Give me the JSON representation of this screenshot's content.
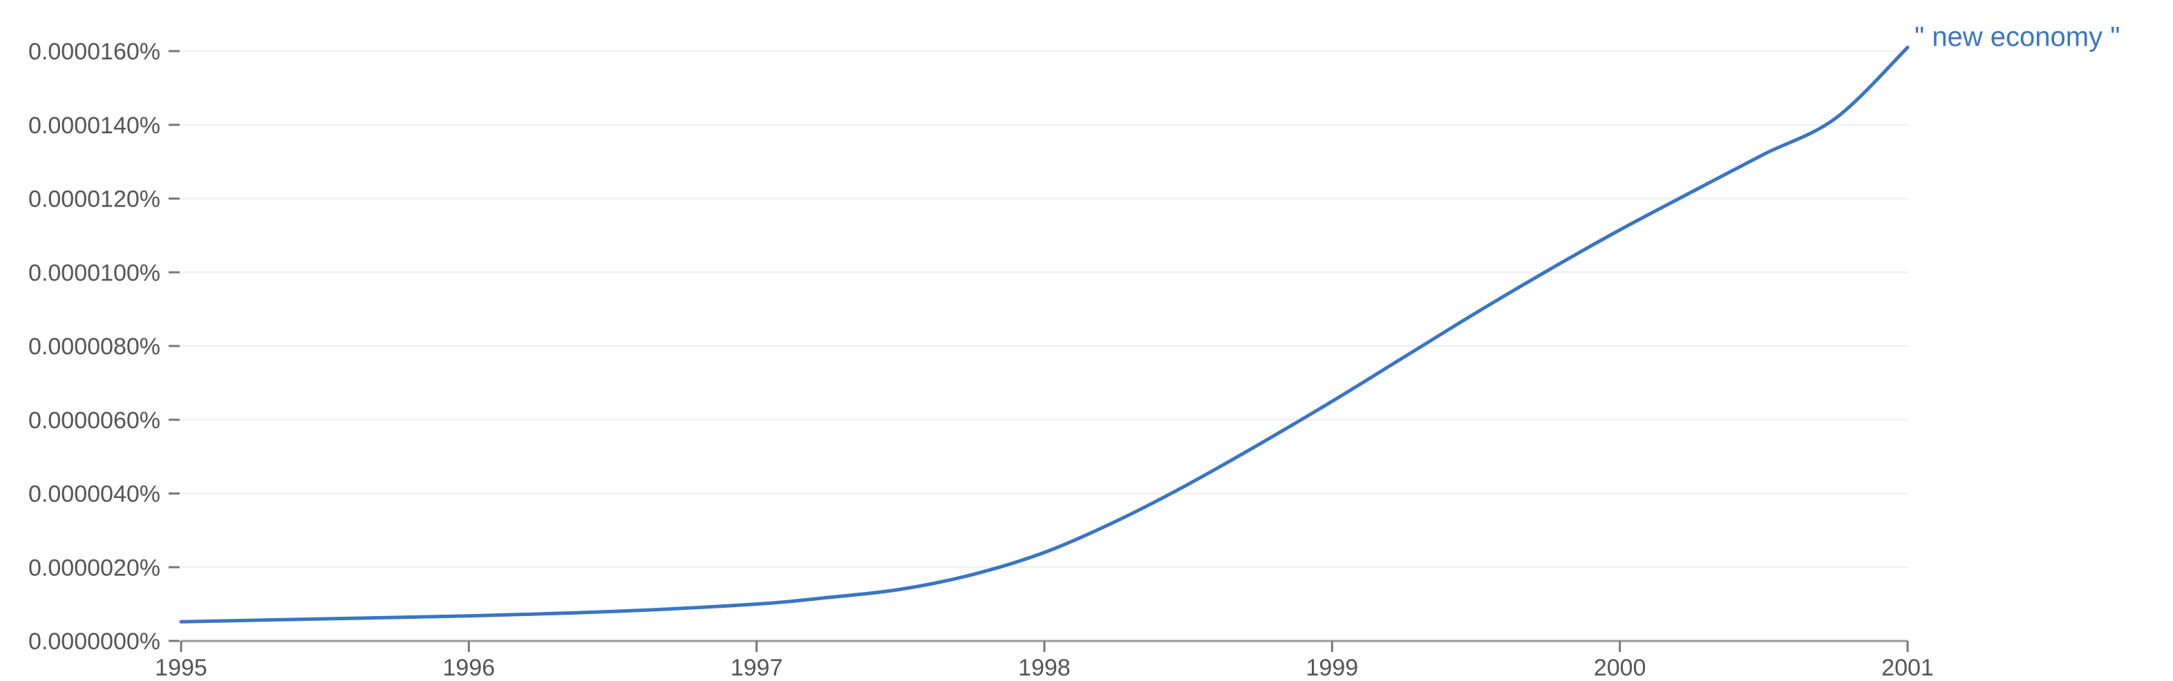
{
  "chart_data": {
    "type": "line",
    "title": "",
    "xlabel": "",
    "ylabel": "",
    "xlim": [
      1995,
      2001
    ],
    "ylim": [
      0,
      1.6e-07
    ],
    "x_ticks": [
      1995,
      1996,
      1997,
      1998,
      1999,
      2000,
      2001
    ],
    "x_tick_labels": [
      "1995",
      "1996",
      "1997",
      "1998",
      "1999",
      "2000",
      "2001"
    ],
    "y_ticks": [
      0,
      2e-08,
      4e-08,
      6e-08,
      8e-08,
      1e-07,
      1.2e-07,
      1.4e-07,
      1.6e-07
    ],
    "y_tick_labels": [
      "0.0000000%",
      "0.0000020%",
      "0.0000040%",
      "0.0000060%",
      "0.0000080%",
      "0.0000100%",
      "0.0000120%",
      "0.0000140%",
      "0.0000160%"
    ],
    "grid": true,
    "series": [
      {
        "name": "\" new economy \"",
        "color": "#3a75c4",
        "x": [
          1995,
          1995.5,
          1996,
          1996.5,
          1997,
          1997.25,
          1997.5,
          1997.75,
          1998,
          1998.25,
          1998.5,
          1998.75,
          1999,
          1999.25,
          1999.5,
          1999.75,
          2000,
          2000.25,
          2000.5,
          2000.75,
          2001
        ],
        "values": [
          5.2e-09,
          6e-09,
          6.8e-09,
          8e-09,
          1e-08,
          1.18e-08,
          1.4e-08,
          1.8e-08,
          2.4e-08,
          3.25e-08,
          4.25e-08,
          5.35e-08,
          6.5e-08,
          7.7e-08,
          8.9e-08,
          1.005e-07,
          1.115e-07,
          1.218e-07,
          1.32e-07,
          1.418e-07,
          1.61e-07
        ]
      }
    ]
  }
}
